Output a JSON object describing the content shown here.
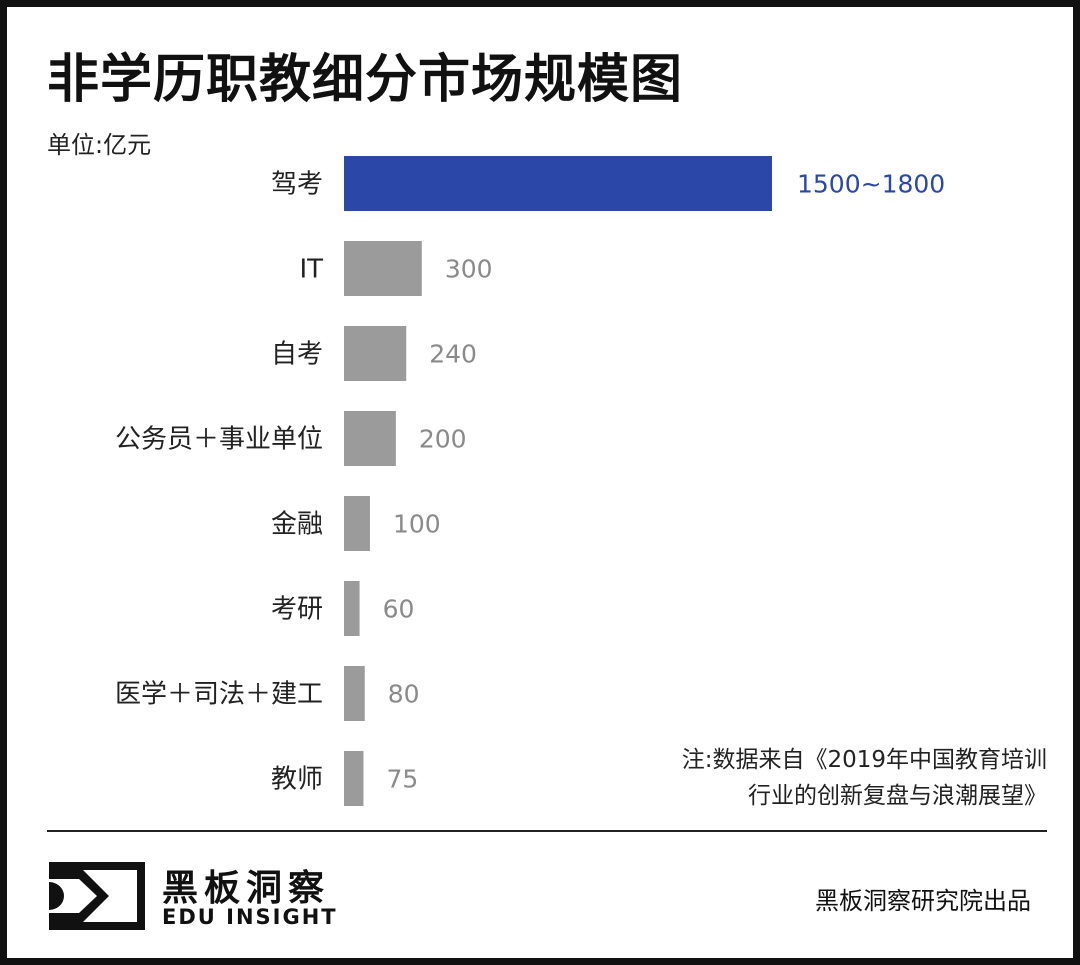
{
  "chart_data": {
    "type": "bar",
    "orientation": "horizontal",
    "title": "非学历职教细分市场规模图",
    "unit": "单位:亿元",
    "categories": [
      "驾考",
      "IT",
      "自考",
      "公务员＋事业单位",
      "金融",
      "考研",
      "医学＋司法＋建工",
      "教师"
    ],
    "values": [
      1650,
      300,
      240,
      200,
      100,
      60,
      80,
      75
    ],
    "value_labels": [
      "1500~1800",
      "300",
      "240",
      "200",
      "100",
      "60",
      "80",
      "75"
    ],
    "highlight_index": 0,
    "xlim": [
      0,
      1650
    ],
    "grid": false,
    "legend": "none",
    "colors": {
      "highlight": "#2b47a8",
      "default": "#9b9b9b",
      "default_label": "#8a8a8a"
    }
  },
  "note": {
    "line1": "注:数据来自《2019年中国教育培训",
    "line2": "行业的创新复盘与浪潮展望》"
  },
  "footer": {
    "brand_cn": "黑板洞察",
    "brand_en": "EDU INSIGHT",
    "credit": "黑板洞察研究院出品",
    "logo_icon": "eye-bracket-logo-icon"
  }
}
